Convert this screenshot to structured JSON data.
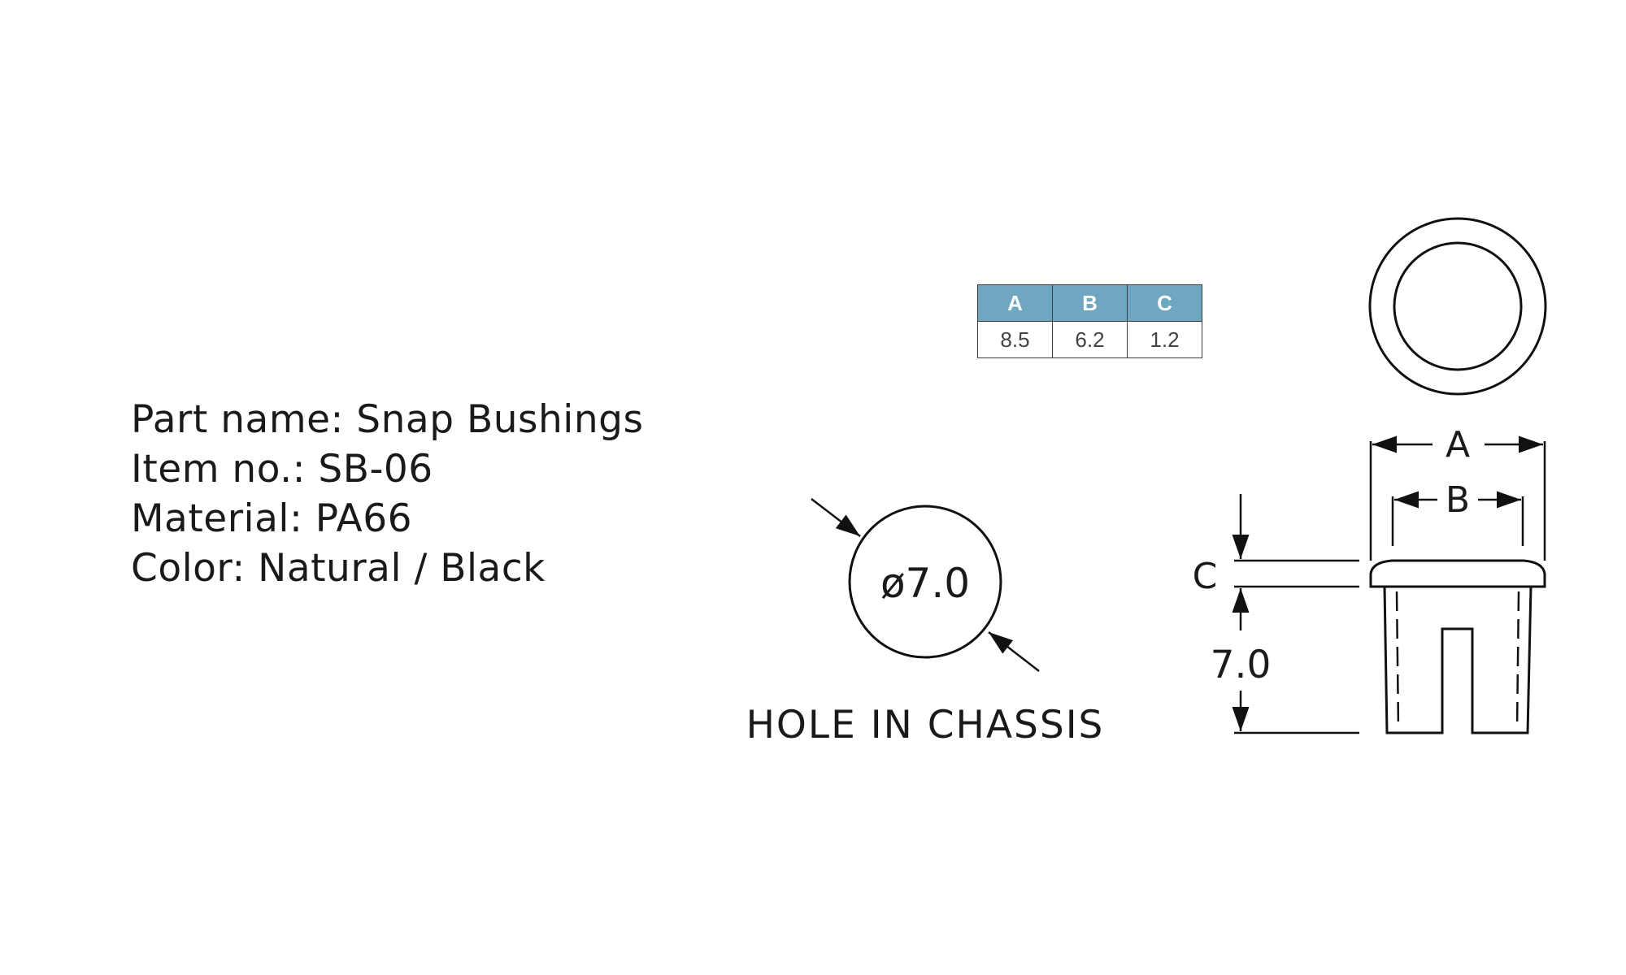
{
  "part_info": {
    "part_name": "Part name: Snap Bushings",
    "item_no": "Item no.: SB-06",
    "material": "Material: PA66",
    "color": "Color: Natural / Black"
  },
  "dimension_table": {
    "headers": [
      "A",
      "B",
      "C"
    ],
    "values": [
      "8.5",
      "6.2",
      "1.2"
    ],
    "header_color": "#6ea7bf"
  },
  "hole_view": {
    "diameter_label": "ø7.0",
    "caption": "HOLE IN CHASSIS"
  },
  "side_view": {
    "dim_a": "A",
    "dim_b": "B",
    "dim_c": "C",
    "height_label": "7.0"
  }
}
